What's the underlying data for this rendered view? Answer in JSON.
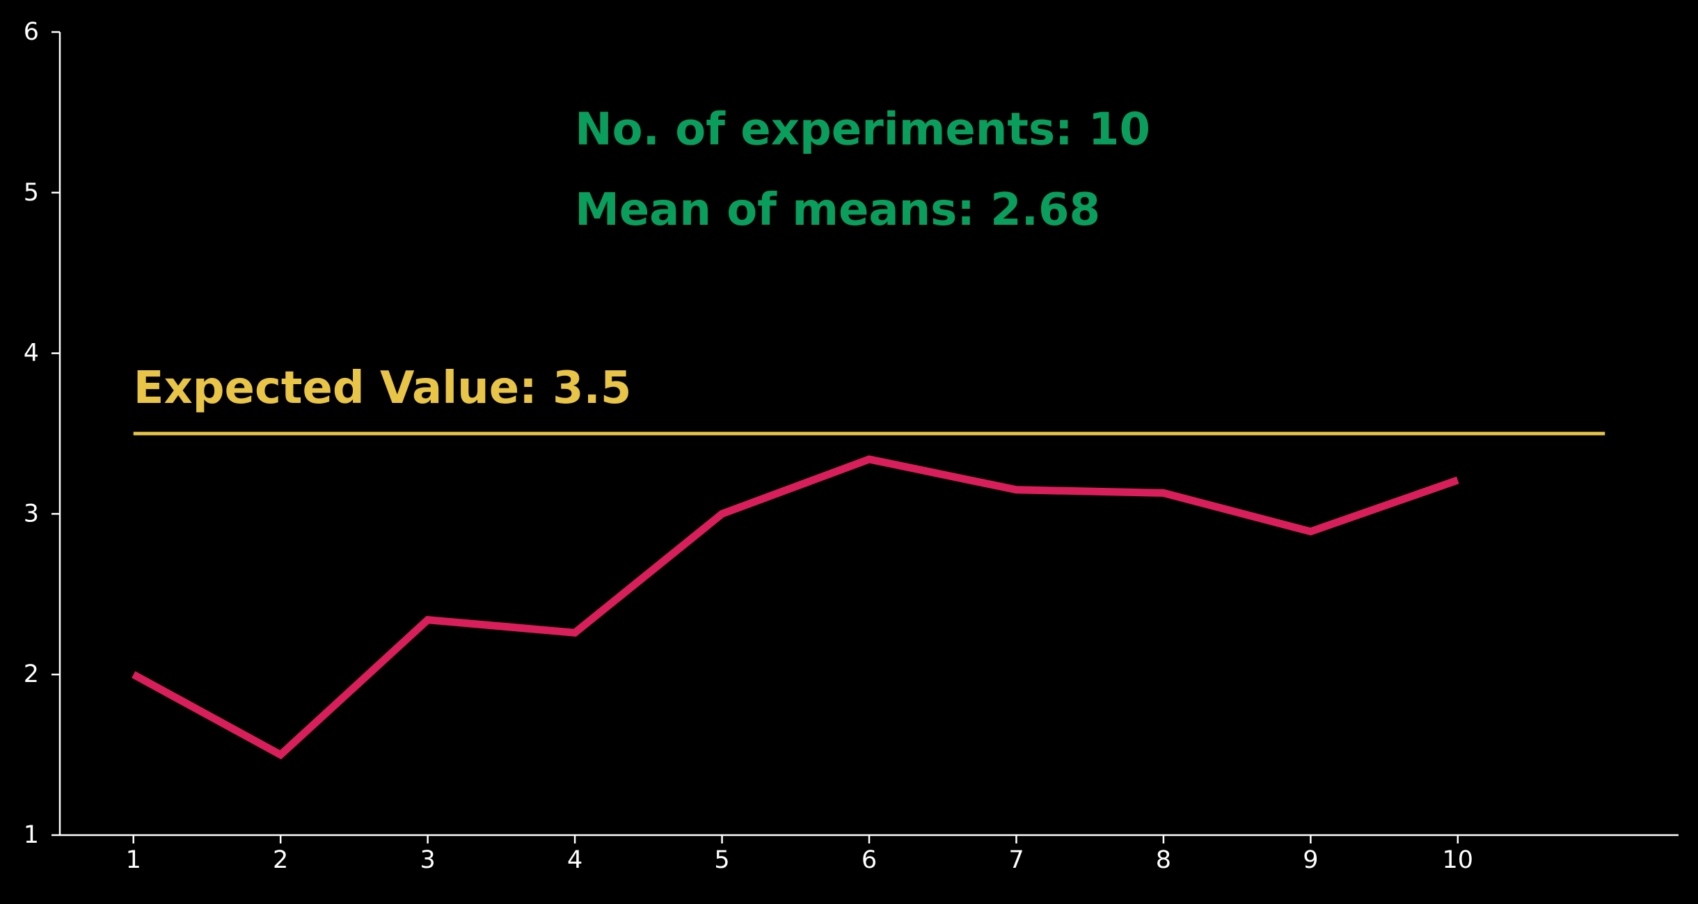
{
  "chart_data": {
    "type": "line",
    "x": [
      1,
      2,
      3,
      4,
      5,
      6,
      7,
      8,
      9,
      10
    ],
    "series": [
      {
        "values": [
          2.0,
          1.5,
          2.34,
          2.26,
          3.0,
          3.34,
          3.15,
          3.13,
          2.89,
          3.21
        ]
      }
    ],
    "reference_line": {
      "value": 3.5,
      "x_range": [
        1,
        11
      ],
      "label": "Expected Value: 3.5"
    },
    "annotations": [
      "No. of experiments: 10",
      "Mean of means: 2.68"
    ],
    "xticks": [
      "1",
      "2",
      "3",
      "4",
      "5",
      "6",
      "7",
      "8",
      "9",
      "10"
    ],
    "yticks": [
      "1",
      "2",
      "3",
      "4",
      "5",
      "6"
    ],
    "xlim": [
      0.5,
      11.5
    ],
    "ylim": [
      1,
      6
    ],
    "grid": false,
    "xlabel": "",
    "ylabel": "",
    "title": ""
  },
  "colors": {
    "background": "#000000",
    "axis": "#ffffff",
    "series": "#d81e5b",
    "reference": "#e8c547",
    "annotation": "#0a9e5c"
  }
}
